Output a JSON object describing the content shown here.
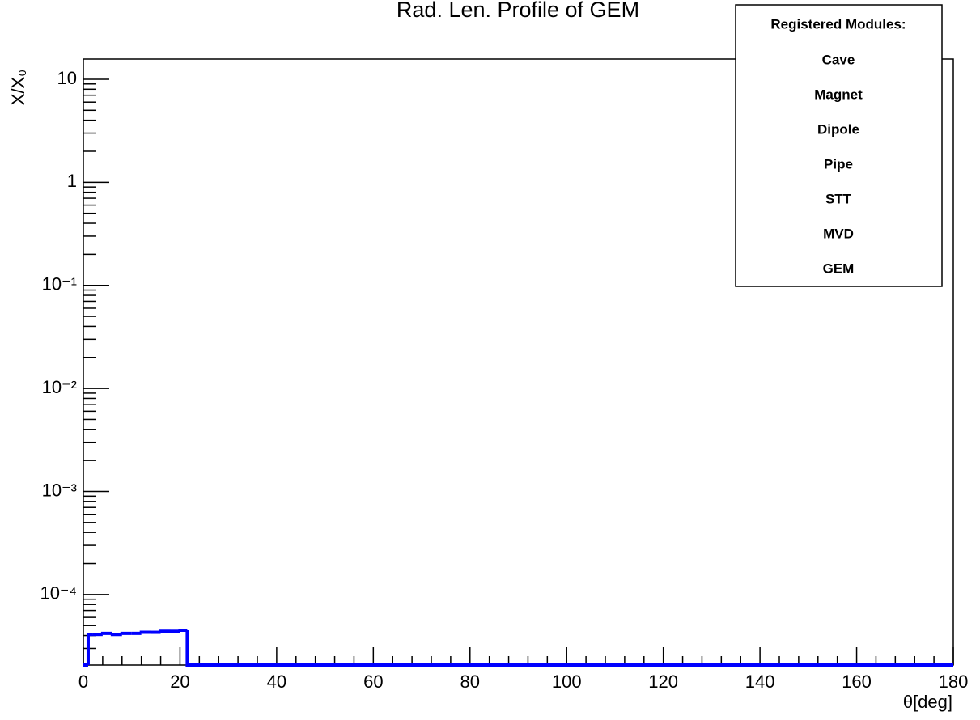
{
  "chart_data": {
    "type": "histogram",
    "title": "Rad. Len. Profile of GEM",
    "x_label": "θ[deg]",
    "y_label": "X/X₀",
    "bins": [
      0,
      1,
      2,
      4,
      6,
      8,
      10,
      12,
      14,
      16,
      18,
      20,
      21.5,
      180
    ],
    "values": [
      0,
      4.1e-05,
      4.1e-05,
      4.2e-05,
      4.1e-05,
      4.2e-05,
      4.2e-05,
      4.3e-05,
      4.3e-05,
      4.4e-05,
      4.4e-05,
      4.5e-05,
      0
    ],
    "color": "#0000ff",
    "xlim": [
      0,
      180
    ],
    "xticks": [
      0,
      20,
      40,
      60,
      80,
      100,
      120,
      140,
      160,
      180
    ],
    "ylim": [
      2.07e-05,
      15.7
    ],
    "log_y": true,
    "yticks": [
      {
        "value": 0.0001,
        "label": "10⁻⁴"
      },
      {
        "value": 0.001,
        "label": "10⁻³"
      },
      {
        "value": 0.01,
        "label": "10⁻²"
      },
      {
        "value": 0.1,
        "label": "10⁻¹"
      },
      1,
      10
    ],
    "annotation_title": "Registered Modules:",
    "annotations": [
      "Cave",
      "Magnet",
      "Dipole",
      "Pipe",
      "STT",
      "MVD",
      "GEM"
    ]
  }
}
